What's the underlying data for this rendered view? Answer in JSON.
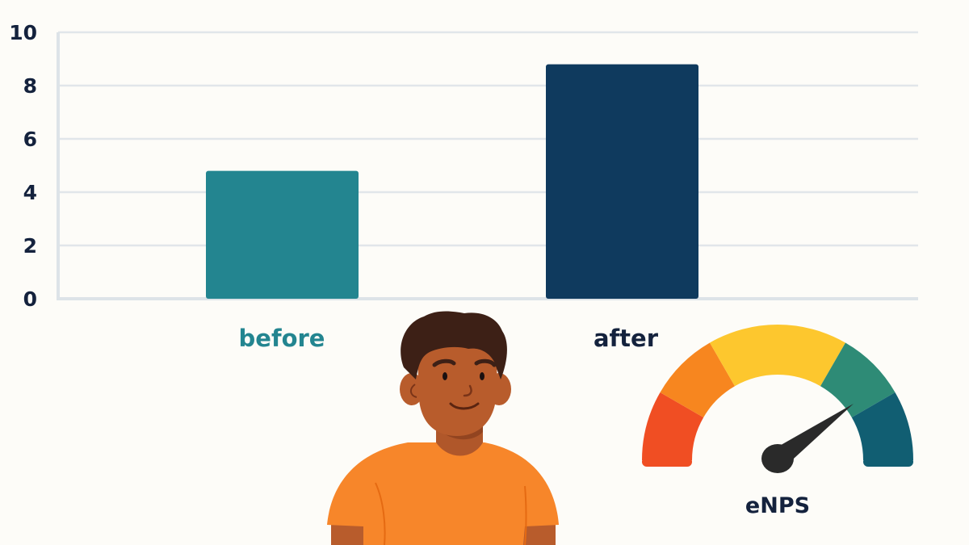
{
  "chart_data": {
    "type": "bar",
    "title": "",
    "xlabel": "",
    "ylabel": "",
    "categories": [
      "before",
      "after"
    ],
    "values": [
      4.8,
      8.8
    ],
    "ylim": [
      0,
      10
    ],
    "yticks": [
      0,
      2,
      4,
      6,
      8,
      10
    ],
    "grid": true,
    "legend": null,
    "bar_colors": [
      "#238590",
      "#0f3a5e"
    ],
    "annotations": [
      "eNPS gauge with needle pointing into the upper (green/teal) range",
      "illustration of a smiling person in an orange t-shirt"
    ]
  },
  "labels": {
    "before": "before",
    "after": "after",
    "gauge": "eNPS"
  },
  "yticks": [
    "0",
    "2",
    "4",
    "6",
    "8",
    "10"
  ],
  "gauge": {
    "segments": [
      {
        "name": "very-low",
        "color": "#f04e23"
      },
      {
        "name": "low",
        "color": "#f7861f"
      },
      {
        "name": "neutral",
        "color": "#fdc72e"
      },
      {
        "name": "good",
        "color": "#2e8b76"
      },
      {
        "name": "excellent",
        "color": "#115e72"
      }
    ],
    "needle_color": "#2a2a2a"
  },
  "colors": {
    "background": "#fdfcf8",
    "grid": "#e1e6ea",
    "axis": "#dde3e8",
    "text_dark": "#14223d",
    "before": "#238590",
    "after": "#0f3a5e",
    "skin": "#b85c2c",
    "hair": "#3d2016",
    "shirt": "#f7862a"
  }
}
